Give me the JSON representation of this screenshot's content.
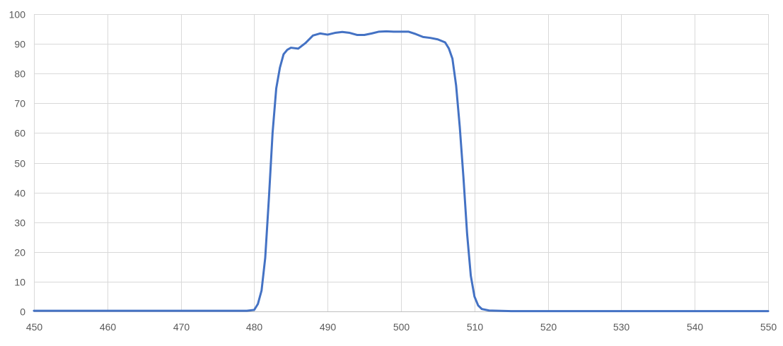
{
  "chart_data": {
    "type": "line",
    "title": "",
    "xlabel": "",
    "ylabel": "",
    "xlim": [
      450,
      550
    ],
    "ylim": [
      0,
      100
    ],
    "x_ticks": [
      450,
      460,
      470,
      480,
      490,
      500,
      510,
      520,
      530,
      540,
      550
    ],
    "y_ticks": [
      0,
      10,
      20,
      30,
      40,
      50,
      60,
      70,
      80,
      90,
      100
    ],
    "grid": true,
    "legend": "none",
    "series": [
      {
        "color": "#4472c4",
        "points": [
          [
            450,
            0.2
          ],
          [
            460,
            0.2
          ],
          [
            470,
            0.2
          ],
          [
            479,
            0.2
          ],
          [
            480,
            0.5
          ],
          [
            480.5,
            2.5
          ],
          [
            481,
            7
          ],
          [
            481.5,
            18
          ],
          [
            482,
            38
          ],
          [
            482.5,
            60
          ],
          [
            483,
            75
          ],
          [
            483.5,
            82
          ],
          [
            484,
            86.5
          ],
          [
            484.5,
            88
          ],
          [
            485,
            88.7
          ],
          [
            486,
            88.4
          ],
          [
            487,
            90.3
          ],
          [
            488,
            92.8
          ],
          [
            489,
            93.5
          ],
          [
            490,
            93.1
          ],
          [
            491,
            93.7
          ],
          [
            492,
            94
          ],
          [
            493,
            93.7
          ],
          [
            494,
            93
          ],
          [
            495,
            93
          ],
          [
            496,
            93.5
          ],
          [
            497,
            94.1
          ],
          [
            498,
            94.2
          ],
          [
            499,
            94.1
          ],
          [
            500,
            94.1
          ],
          [
            501,
            94.1
          ],
          [
            502,
            93.3
          ],
          [
            503,
            92.3
          ],
          [
            504,
            92
          ],
          [
            505,
            91.5
          ],
          [
            506,
            90.5
          ],
          [
            506.5,
            88.5
          ],
          [
            507,
            85
          ],
          [
            507.5,
            76
          ],
          [
            508,
            62
          ],
          [
            508.5,
            45
          ],
          [
            509,
            26
          ],
          [
            509.5,
            12
          ],
          [
            510,
            5
          ],
          [
            510.5,
            2
          ],
          [
            511,
            0.8
          ],
          [
            512,
            0.3
          ],
          [
            515,
            0.1
          ],
          [
            520,
            0.1
          ],
          [
            530,
            0.1
          ],
          [
            540,
            0.1
          ],
          [
            550,
            0.1
          ]
        ]
      }
    ]
  }
}
